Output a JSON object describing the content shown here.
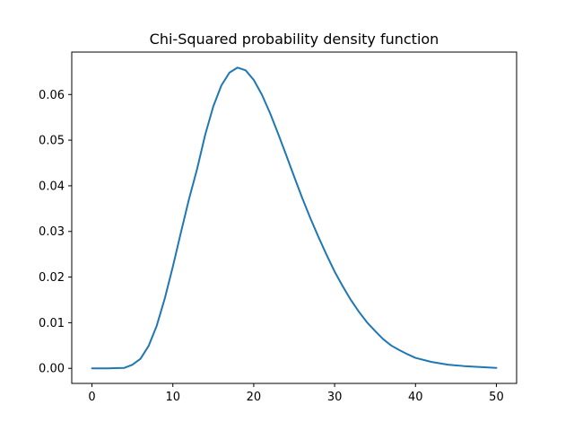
{
  "chart_data": {
    "type": "line",
    "title": "Chi-Squared probability density function",
    "xlabel": "",
    "ylabel": "",
    "xlim": [
      -2.5,
      52.5
    ],
    "ylim": [
      -0.0033,
      0.0693
    ],
    "x_ticks": [
      0,
      10,
      20,
      30,
      40,
      50
    ],
    "x_tick_labels": [
      "0",
      "10",
      "20",
      "30",
      "40",
      "50"
    ],
    "y_ticks": [
      0.0,
      0.01,
      0.02,
      0.03,
      0.04,
      0.05,
      0.06
    ],
    "y_tick_labels": [
      "0.00",
      "0.01",
      "0.02",
      "0.03",
      "0.04",
      "0.05",
      "0.06"
    ],
    "grid": false,
    "legend": "none",
    "series": [
      {
        "color": "#1f77b4",
        "x": [
          0,
          2,
          4,
          5,
          6,
          7,
          8,
          9,
          10,
          11,
          12,
          13,
          14,
          15,
          16,
          17,
          18,
          19,
          20,
          21,
          22,
          23,
          24,
          25,
          26,
          27,
          28,
          29,
          30,
          31,
          32,
          33,
          34,
          35,
          36,
          37,
          38,
          39,
          40,
          42,
          44,
          46,
          48,
          50
        ],
        "y": [
          0.0,
          0.0,
          0.0001,
          0.0008,
          0.0021,
          0.0049,
          0.0093,
          0.0153,
          0.0223,
          0.0298,
          0.0371,
          0.0437,
          0.0512,
          0.0574,
          0.062,
          0.0648,
          0.0659,
          0.0653,
          0.0632,
          0.06,
          0.056,
          0.0515,
          0.0468,
          0.042,
          0.0373,
          0.0329,
          0.0288,
          0.0249,
          0.0212,
          0.018,
          0.015,
          0.0124,
          0.0101,
          0.0082,
          0.0064,
          0.005,
          0.004,
          0.0031,
          0.0023,
          0.0014,
          0.0008,
          0.0005,
          0.0003,
          0.0001
        ]
      }
    ]
  }
}
